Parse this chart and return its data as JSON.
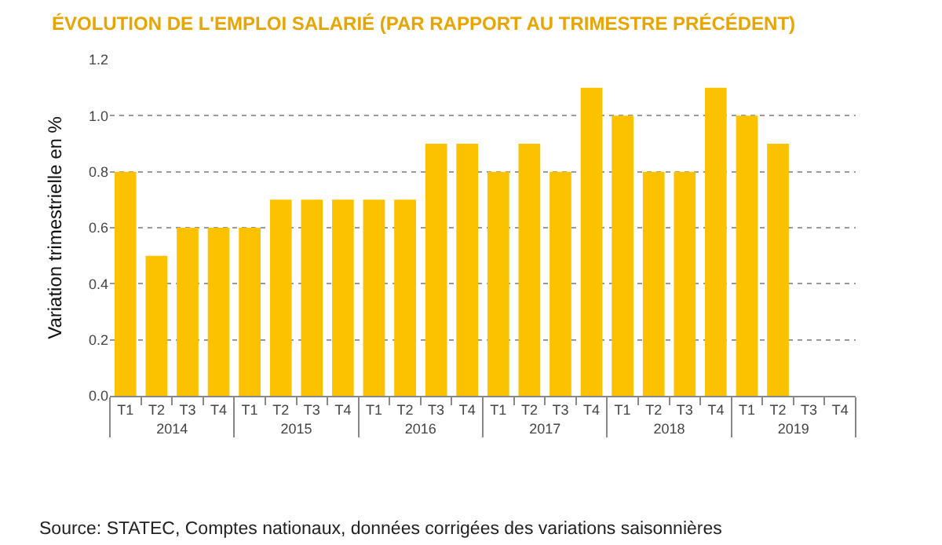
{
  "chart_data": {
    "type": "bar",
    "title": "ÉVOLUTION DE L'EMPLOI SALARIÉ (PAR RAPPORT AU TRIMESTRE PRÉCÉDENT)",
    "ylabel": "Variation trimestrielle en %",
    "categories": [
      "T1",
      "T2",
      "T3",
      "T4",
      "T1",
      "T2",
      "T3",
      "T4",
      "T1",
      "T2",
      "T3",
      "T4",
      "T1",
      "T2",
      "T3",
      "T4",
      "T1",
      "T2",
      "T3",
      "T4",
      "T1",
      "T2",
      "T3",
      "T4"
    ],
    "values": [
      0.8,
      0.5,
      0.6,
      0.6,
      0.6,
      0.7,
      0.7,
      0.7,
      0.7,
      0.7,
      0.9,
      0.9,
      0.8,
      0.9,
      0.8,
      1.1,
      1.0,
      0.8,
      0.8,
      1.1,
      1.0,
      0.9,
      null,
      null
    ],
    "color": "#fcc200",
    "ylim": [
      0,
      1.2
    ],
    "yticks": [
      {
        "value": 0,
        "label": "0.0"
      },
      {
        "value": 0.2,
        "label": "0.2"
      },
      {
        "value": 0.4,
        "label": "0.4"
      },
      {
        "value": 0.6,
        "label": "0.6"
      },
      {
        "value": 0.8,
        "label": "0.8"
      },
      {
        "value": 1.0,
        "label": "1.0"
      },
      {
        "value": 1.2,
        "label": "1.2"
      }
    ],
    "grid": "y",
    "legend": false,
    "annotations": [
      "2014",
      "2015",
      "2016",
      "2017",
      "2018",
      "2019",
      "Source: STATEC, Comptes nationaux, données corrigées des variations saisonnières"
    ]
  }
}
